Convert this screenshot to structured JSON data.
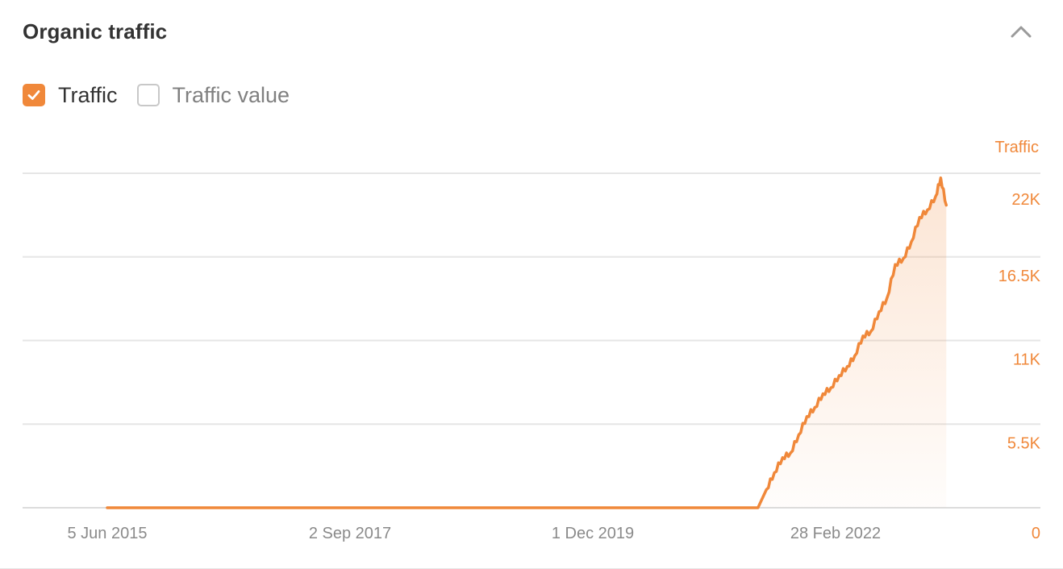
{
  "panel": {
    "title": "Organic traffic"
  },
  "legend": {
    "items": [
      {
        "label": "Traffic",
        "checked": true
      },
      {
        "label": "Traffic value",
        "checked": false
      }
    ]
  },
  "colors": {
    "accent": "#f0883a",
    "grid": "#e6e6e6",
    "text": "#333333",
    "muted": "#8a8a8a"
  },
  "icons": {
    "collapse": "chevron-up-icon",
    "check": "check-icon"
  },
  "chart_data": {
    "type": "area",
    "title": "",
    "xlabel": "",
    "ylabel": "Traffic",
    "x_ticks": [
      "5 Jun 2015",
      "2 Sep 2017",
      "1 Dec 2019",
      "28 Feb 2022"
    ],
    "y_ticks": [
      "0",
      "5.5K",
      "11K",
      "16.5K",
      "22K"
    ],
    "xlim": [
      "2015-06-05",
      "2024-04-01"
    ],
    "ylim": [
      0,
      22000
    ],
    "grid": true,
    "legend_position": "top-left",
    "series": [
      {
        "name": "Traffic",
        "x": [
          "2015-06-05",
          "2022-01-15",
          "2022-02-28",
          "2022-04-01",
          "2022-05-01",
          "2022-06-01",
          "2022-07-01",
          "2022-08-01",
          "2022-09-01",
          "2022-10-01",
          "2022-11-01",
          "2022-12-01",
          "2023-01-01",
          "2023-02-01",
          "2023-03-01",
          "2023-04-01",
          "2023-05-01",
          "2023-06-01",
          "2023-07-01",
          "2023-08-01",
          "2023-09-01",
          "2023-10-01",
          "2023-11-01",
          "2023-12-01",
          "2024-01-01",
          "2024-01-20",
          "2024-02-10"
        ],
        "values": [
          0,
          0,
          0,
          1200,
          2300,
          3300,
          3600,
          4800,
          6000,
          6600,
          7500,
          7900,
          8700,
          9300,
          10000,
          11300,
          11600,
          12900,
          13800,
          16000,
          16400,
          17500,
          19100,
          19600,
          20500,
          21700,
          19900
        ]
      }
    ]
  }
}
